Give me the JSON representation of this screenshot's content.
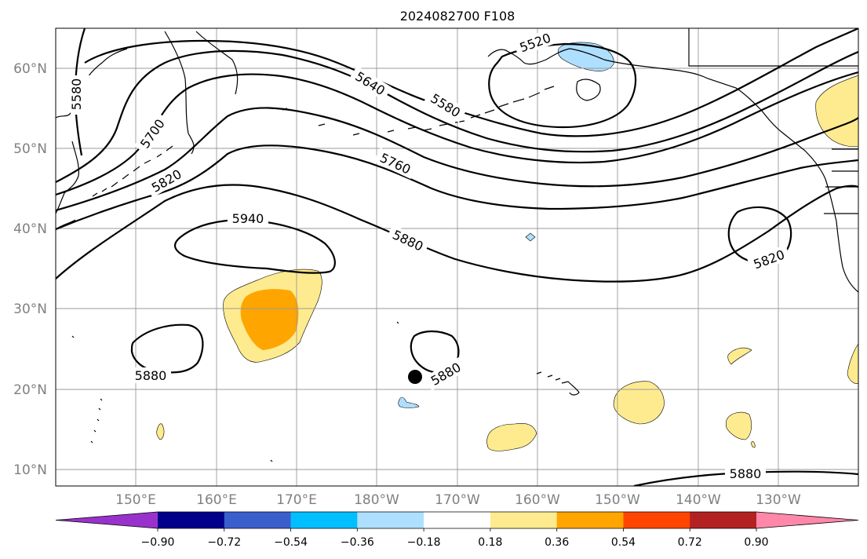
{
  "title": "2024082700 F108",
  "map": {
    "lat_labels": [
      "60°N",
      "50°N",
      "40°N",
      "30°N",
      "20°N",
      "10°N"
    ],
    "lon_labels": [
      "150°E",
      "160°E",
      "170°E",
      "180°W",
      "170°W",
      "160°W",
      "150°W",
      "140°W",
      "130°W"
    ],
    "contour_labels": [
      "5520",
      "5580",
      "5580",
      "5640",
      "5700",
      "5760",
      "5820",
      "5820",
      "5880",
      "5880",
      "5880",
      "5880",
      "5940"
    ],
    "anomaly_colors": {
      "positive_light": "#ffeb8f",
      "positive_mid": "#ffa500",
      "negative_light": "#afdfff"
    },
    "marker": "typhoon-position-dot"
  },
  "colorbar": {
    "colors": [
      "#9932cc",
      "#00008b",
      "#3a5fcd",
      "#00bfff",
      "#afdfff",
      "#ffffff",
      "#ffeb8f",
      "#ffa500",
      "#ff4500",
      "#b22222",
      "#ff88aa"
    ],
    "ticks": [
      "−0.90",
      "−0.72",
      "−0.54",
      "−0.36",
      "−0.18",
      "0.18",
      "0.36",
      "0.54",
      "0.72",
      "0.90"
    ]
  }
}
